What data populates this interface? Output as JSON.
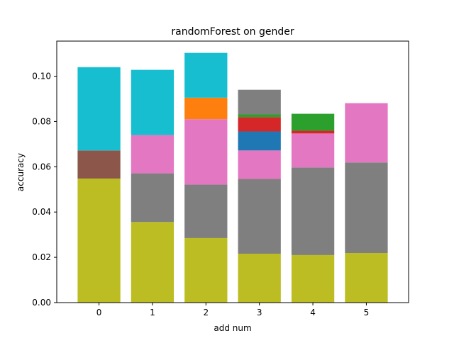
{
  "chart_data": {
    "type": "bar",
    "stacked": true,
    "title": "randomForest on gender",
    "xlabel": "add num",
    "ylabel": "accuracy",
    "categories": [
      "0",
      "1",
      "2",
      "3",
      "4",
      "5"
    ],
    "ylim": [
      0,
      0.1155
    ],
    "yticks": [
      "0.00",
      "0.02",
      "0.04",
      "0.06",
      "0.08",
      "0.10"
    ],
    "ytick_values": [
      0,
      0.02,
      0.04,
      0.06,
      0.08,
      0.1
    ],
    "grid": false,
    "bars": [
      {
        "category": "0",
        "segments": [
          {
            "from": 0,
            "to": 0.0548,
            "color": "#bcbd22"
          },
          {
            "from": 0.0548,
            "to": 0.0672,
            "color": "#8c564b"
          },
          {
            "from": 0.0672,
            "to": 0.104,
            "color": "#17becf"
          }
        ]
      },
      {
        "category": "1",
        "segments": [
          {
            "from": 0,
            "to": 0.0356,
            "color": "#bcbd22"
          },
          {
            "from": 0.0356,
            "to": 0.0571,
            "color": "#7f7f7f"
          },
          {
            "from": 0.0571,
            "to": 0.074,
            "color": "#e377c2"
          },
          {
            "from": 0.074,
            "to": 0.1028,
            "color": "#17becf"
          }
        ]
      },
      {
        "category": "2",
        "segments": [
          {
            "from": 0,
            "to": 0.0285,
            "color": "#bcbd22"
          },
          {
            "from": 0.0285,
            "to": 0.0521,
            "color": "#7f7f7f"
          },
          {
            "from": 0.0521,
            "to": 0.081,
            "color": "#e377c2"
          },
          {
            "from": 0.081,
            "to": 0.0905,
            "color": "#ff7f0e"
          },
          {
            "from": 0.0905,
            "to": 0.1103,
            "color": "#17becf"
          }
        ]
      },
      {
        "category": "3",
        "segments": [
          {
            "from": 0,
            "to": 0.0216,
            "color": "#bcbd22"
          },
          {
            "from": 0.0216,
            "to": 0.0546,
            "color": "#7f7f7f"
          },
          {
            "from": 0.0546,
            "to": 0.0672,
            "color": "#e377c2"
          },
          {
            "from": 0.0672,
            "to": 0.0756,
            "color": "#1f77b4"
          },
          {
            "from": 0.0756,
            "to": 0.0819,
            "color": "#d62728"
          },
          {
            "from": 0.0819,
            "to": 0.0831,
            "color": "#2ca02c"
          },
          {
            "from": 0.0831,
            "to": 0.094,
            "color": "#7f7f7f"
          }
        ]
      },
      {
        "category": "4",
        "segments": [
          {
            "from": 0,
            "to": 0.021,
            "color": "#bcbd22"
          },
          {
            "from": 0.021,
            "to": 0.0597,
            "color": "#7f7f7f"
          },
          {
            "from": 0.0597,
            "to": 0.0747,
            "color": "#e377c2"
          },
          {
            "from": 0.0747,
            "to": 0.0759,
            "color": "#d62728"
          },
          {
            "from": 0.0759,
            "to": 0.0834,
            "color": "#2ca02c"
          }
        ]
      },
      {
        "category": "5",
        "segments": [
          {
            "from": 0,
            "to": 0.0219,
            "color": "#bcbd22"
          },
          {
            "from": 0.0219,
            "to": 0.0619,
            "color": "#7f7f7f"
          },
          {
            "from": 0.0619,
            "to": 0.0881,
            "color": "#e377c2"
          }
        ]
      }
    ]
  }
}
